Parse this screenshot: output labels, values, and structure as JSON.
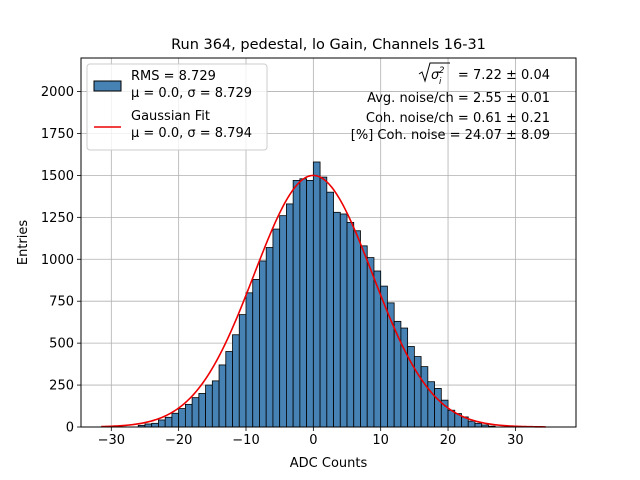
{
  "chart_data": {
    "type": "bar",
    "title": "Run 364, pedestal, lo Gain, Channels 16-31",
    "xlabel": "ADC Counts",
    "ylabel": "Entries",
    "xlim": [
      -34.5,
      39
    ],
    "ylim": [
      0,
      2200
    ],
    "grid": true,
    "x_ticks": [
      -30,
      -20,
      -10,
      0,
      10,
      20,
      30
    ],
    "x_tick_labels": [
      "−30",
      "−20",
      "−10",
      "0",
      "10",
      "20",
      "30"
    ],
    "y_ticks": [
      0,
      250,
      500,
      750,
      1000,
      1250,
      1500,
      1750,
      2000
    ],
    "y_tick_labels": [
      "0",
      "250",
      "500",
      "750",
      "1000",
      "1250",
      "1500",
      "1750",
      "2000"
    ],
    "bin_width": 1,
    "histogram": {
      "name_lines": [
        "RMS = 8.729",
        "μ = 0.0, σ = 8.729"
      ],
      "color": "#4682b4",
      "edge_color": "#000000",
      "bin_left_edges": [
        -26,
        -25,
        -24,
        -23,
        -22,
        -21,
        -20,
        -19,
        -18,
        -17,
        -16,
        -15,
        -14,
        -13,
        -12,
        -11,
        -10,
        -9,
        -8,
        -7,
        -6,
        -5,
        -4,
        -3,
        -2,
        -1,
        0,
        1,
        2,
        3,
        4,
        5,
        6,
        7,
        8,
        9,
        10,
        11,
        12,
        13,
        14,
        15,
        16,
        17,
        18,
        19,
        20,
        21,
        22,
        23,
        24,
        25,
        26
      ],
      "counts": [
        10,
        18,
        22,
        42,
        58,
        82,
        110,
        135,
        175,
        200,
        250,
        275,
        370,
        450,
        550,
        670,
        800,
        880,
        990,
        1070,
        1180,
        1260,
        1330,
        1470,
        1480,
        1470,
        1580,
        1490,
        1400,
        1280,
        1270,
        1220,
        1170,
        1080,
        1010,
        930,
        840,
        740,
        630,
        590,
        480,
        420,
        360,
        270,
        230,
        160,
        100,
        80,
        60,
        35,
        22,
        12,
        5
      ]
    },
    "fit": {
      "name": "Gaussian Fit",
      "params_label": "μ = 0.0, σ = 8.794",
      "color": "#ee0000",
      "mu": 0.0,
      "sigma": 8.794,
      "amplitude": 1500,
      "x_range": [
        -31.5,
        34.5
      ]
    },
    "legend_position": "upper left",
    "annotations": {
      "position": "top-right",
      "lines": [
        {
          "value": " = 7.22 ± 0.04"
        },
        {
          "value": "Avg. noise/ch = 2.55 ± 0.01"
        },
        {
          "value": "Coh. noise/ch = 0.61 ± 0.21"
        },
        {
          "value": "[%] Coh. noise = 24.07 ± 8.09"
        }
      ]
    }
  }
}
